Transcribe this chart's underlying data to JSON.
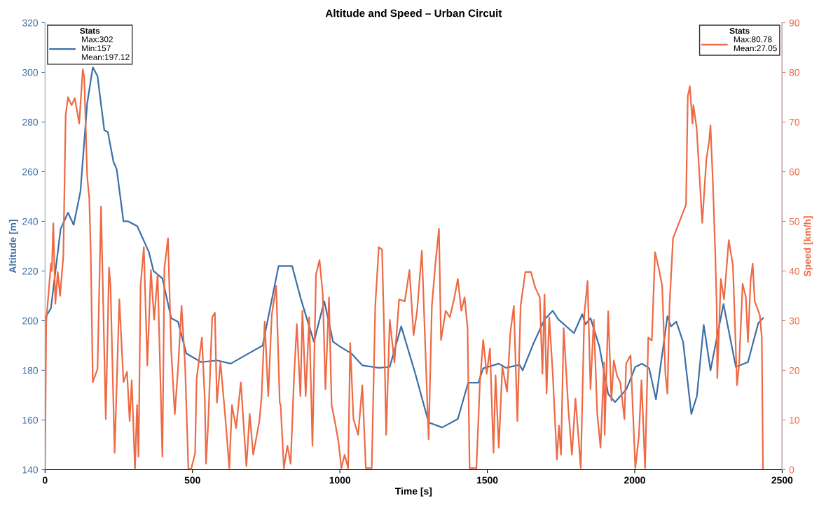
{
  "chart_data": {
    "type": "line",
    "title": "Altitude and Speed – Urban Circuit",
    "xlabel": "Time [s]",
    "ylabel": "Altitude [m]",
    "y2label": "Speed [km/h]",
    "legend_title": "Stats",
    "legend": "top left",
    "grid": false,
    "marker": "none",
    "line_style": "solid",
    "xlim": [
      0,
      2500
    ],
    "xticks": [
      0,
      500,
      1000,
      1500,
      2000,
      2500
    ],
    "ylim": [
      140,
      320
    ],
    "yticks": [
      140,
      160,
      180,
      200,
      220,
      240,
      260,
      280,
      300,
      320
    ],
    "y2lim": [
      0,
      90
    ],
    "y2ticks": [
      0,
      10,
      20,
      30,
      40,
      50,
      60,
      70,
      80,
      90
    ],
    "series": [
      {
        "name": "Max:302\nMin:157\nMean:197.12",
        "color": "#3d6fa8",
        "axis": "y",
        "x": [
          0,
          20,
          53,
          78,
          97,
          120,
          143,
          162,
          178,
          201,
          213,
          232,
          243,
          266,
          282,
          313,
          352,
          368,
          398,
          428,
          451,
          479,
          530,
          583,
          630,
          683,
          738,
          792,
          838,
          868,
          912,
          947,
          977,
          1000,
          1039,
          1076,
          1132,
          1169,
          1208,
          1255,
          1301,
          1347,
          1400,
          1435,
          1470,
          1486,
          1539,
          1563,
          1609,
          1620,
          1655,
          1694,
          1722,
          1741,
          1794,
          1822,
          1833,
          1850,
          1880,
          1910,
          1933,
          1972,
          2002,
          2025,
          2049,
          2072,
          2111,
          2123,
          2141,
          2164,
          2192,
          2211,
          2234,
          2257,
          2301,
          2343,
          2384,
          2419,
          2435
        ],
        "values": [
          201,
          205,
          237,
          243.5,
          238.6,
          252,
          287.6,
          302,
          298.5,
          276.7,
          276,
          264,
          261,
          240,
          240,
          238,
          227.7,
          220,
          217,
          201,
          199.6,
          186.8,
          183.3,
          184,
          182.7,
          186.3,
          190,
          222,
          222,
          208.6,
          191.5,
          207.8,
          191.5,
          189.6,
          186.8,
          182,
          181,
          181.4,
          197.7,
          179,
          159,
          157,
          160.4,
          175,
          175,
          180.8,
          182.7,
          181,
          182.2,
          180,
          190.4,
          200.5,
          204,
          200.5,
          195,
          202.6,
          198.5,
          201,
          189.6,
          170.5,
          167.2,
          172.4,
          181.4,
          182.7,
          180.8,
          168.3,
          201.8,
          197.7,
          199.6,
          191.5,
          162.4,
          169.7,
          198.3,
          180,
          206.7,
          181.4,
          183.3,
          199,
          201
        ]
      },
      {
        "name": "Max:80.78\nMean:27.05",
        "color": "#ee6a45",
        "axis": "y2",
        "x": [
          0,
          4,
          20,
          23,
          28,
          35,
          43,
          51,
          62,
          70,
          78,
          90,
          101,
          116,
          128,
          133,
          143,
          150,
          155,
          162,
          178,
          190,
          206,
          217,
          222,
          236,
          252,
          266,
          278,
          287,
          294,
          305,
          312,
          317,
          324,
          335,
          347,
          359,
          370,
          382,
          398,
          405,
          417,
          428,
          440,
          451,
          463,
          475,
          486,
          495,
          509,
          514,
          532,
          542,
          546,
          553,
          567,
          576,
          583,
          595,
          613,
          625,
          634,
          648,
          664,
          683,
          694,
          706,
          727,
          734,
          745,
          757,
          769,
          784,
          796,
          799,
          810,
          822,
          833,
          845,
          854,
          866,
          873,
          884,
          896,
          907,
          919,
          931,
          942,
          951,
          963,
          972,
          984,
          995,
          1005,
          1016,
          1028,
          1035,
          1046,
          1062,
          1076,
          1088,
          1108,
          1120,
          1132,
          1143,
          1150,
          1157,
          1169,
          1185,
          1201,
          1220,
          1236,
          1250,
          1262,
          1278,
          1301,
          1312,
          1324,
          1336,
          1343,
          1359,
          1373,
          1387,
          1400,
          1412,
          1423,
          1433,
          1440,
          1463,
          1475,
          1486,
          1498,
          1509,
          1521,
          1528,
          1539,
          1551,
          1567,
          1578,
          1590,
          1602,
          1613,
          1629,
          1648,
          1663,
          1678,
          1687,
          1694,
          1701,
          1710,
          1722,
          1736,
          1743,
          1750,
          1759,
          1775,
          1787,
          1799,
          1808,
          1817,
          1829,
          1840,
          1850,
          1861,
          1873,
          1884,
          1896,
          1898,
          1910,
          1921,
          1929,
          1940,
          1951,
          1965,
          1971,
          1986,
          2002,
          2014,
          2023,
          2035,
          2046,
          2058,
          2069,
          2081,
          2093,
          2104,
          2111,
          2118,
          2130,
          2174,
          2180,
          2187,
          2196,
          2199,
          2210,
          2219,
          2229,
          2243,
          2252,
          2257,
          2265,
          2273,
          2278,
          2280,
          2292,
          2303,
          2319,
          2333,
          2347,
          2354,
          2366,
          2377,
          2384,
          2393,
          2400,
          2407,
          2424,
          2431,
          2435
        ],
        "values": [
          0,
          29.8,
          41.5,
          40,
          49.6,
          33.4,
          39.8,
          35,
          43,
          71.5,
          75,
          73.4,
          74.8,
          69.7,
          80.6,
          79,
          59,
          54.7,
          43.8,
          17.6,
          20.3,
          53,
          10.2,
          40.7,
          37,
          3.4,
          34.3,
          17.6,
          19.7,
          9.8,
          18,
          0,
          13,
          2.6,
          37,
          44.8,
          21,
          40.2,
          30.2,
          39.3,
          2.6,
          40.7,
          46.6,
          23.8,
          11.2,
          20.3,
          33,
          21,
          0.3,
          0,
          3.3,
          18.2,
          26.6,
          13.9,
          1.2,
          8.9,
          30.7,
          31.6,
          13.5,
          21.6,
          9.4,
          0.3,
          13,
          8.4,
          17.6,
          0.7,
          11.2,
          3,
          9.8,
          14.3,
          29.8,
          14.8,
          31.2,
          37,
          13.5,
          13,
          0.3,
          4.8,
          1.2,
          19.3,
          29.3,
          14.8,
          32,
          14.8,
          30.7,
          4.8,
          39.3,
          42.2,
          35.3,
          16.2,
          34.7,
          13,
          9.4,
          5.7,
          0.3,
          3,
          0.3,
          25.5,
          10.2,
          7,
          17,
          0.3,
          0.3,
          33,
          44.8,
          44.3,
          27.9,
          7,
          30.2,
          21.6,
          34.3,
          33.9,
          40.2,
          27.1,
          32,
          44.1,
          6.1,
          33,
          41.5,
          48.5,
          26.1,
          32,
          30.7,
          34.3,
          38.4,
          32,
          34.7,
          28.5,
          0.3,
          0.3,
          17.6,
          26.1,
          19.3,
          24.4,
          3.4,
          19,
          4.4,
          20.7,
          15.7,
          27.5,
          33,
          9.8,
          33,
          39.8,
          39.8,
          36.6,
          34.7,
          19.3,
          35.3,
          15.3,
          30.7,
          19.3,
          2,
          8.9,
          3,
          28.5,
          12.1,
          3,
          14.3,
          7.5,
          0.3,
          31.2,
          38,
          16.2,
          30.2,
          11.2,
          4.4,
          21.6,
          7,
          31.9,
          13.9,
          22,
          18.9,
          17.6,
          10.2,
          21.4,
          23,
          0.3,
          6.7,
          18,
          0.3,
          26.6,
          26,
          43.8,
          40.7,
          37,
          19.3,
          15.3,
          33,
          46.6,
          53.4,
          75.2,
          77.2,
          69.7,
          73.4,
          68.8,
          59.8,
          49.7,
          62.5,
          66,
          69.3,
          57.9,
          43.8,
          33,
          18.4,
          38.4,
          34.3,
          46.2,
          41.1,
          17,
          21.1,
          37.4,
          34.7,
          25.7,
          38,
          41.5,
          33.9,
          31.2,
          26.6,
          0.3
        ]
      }
    ]
  }
}
